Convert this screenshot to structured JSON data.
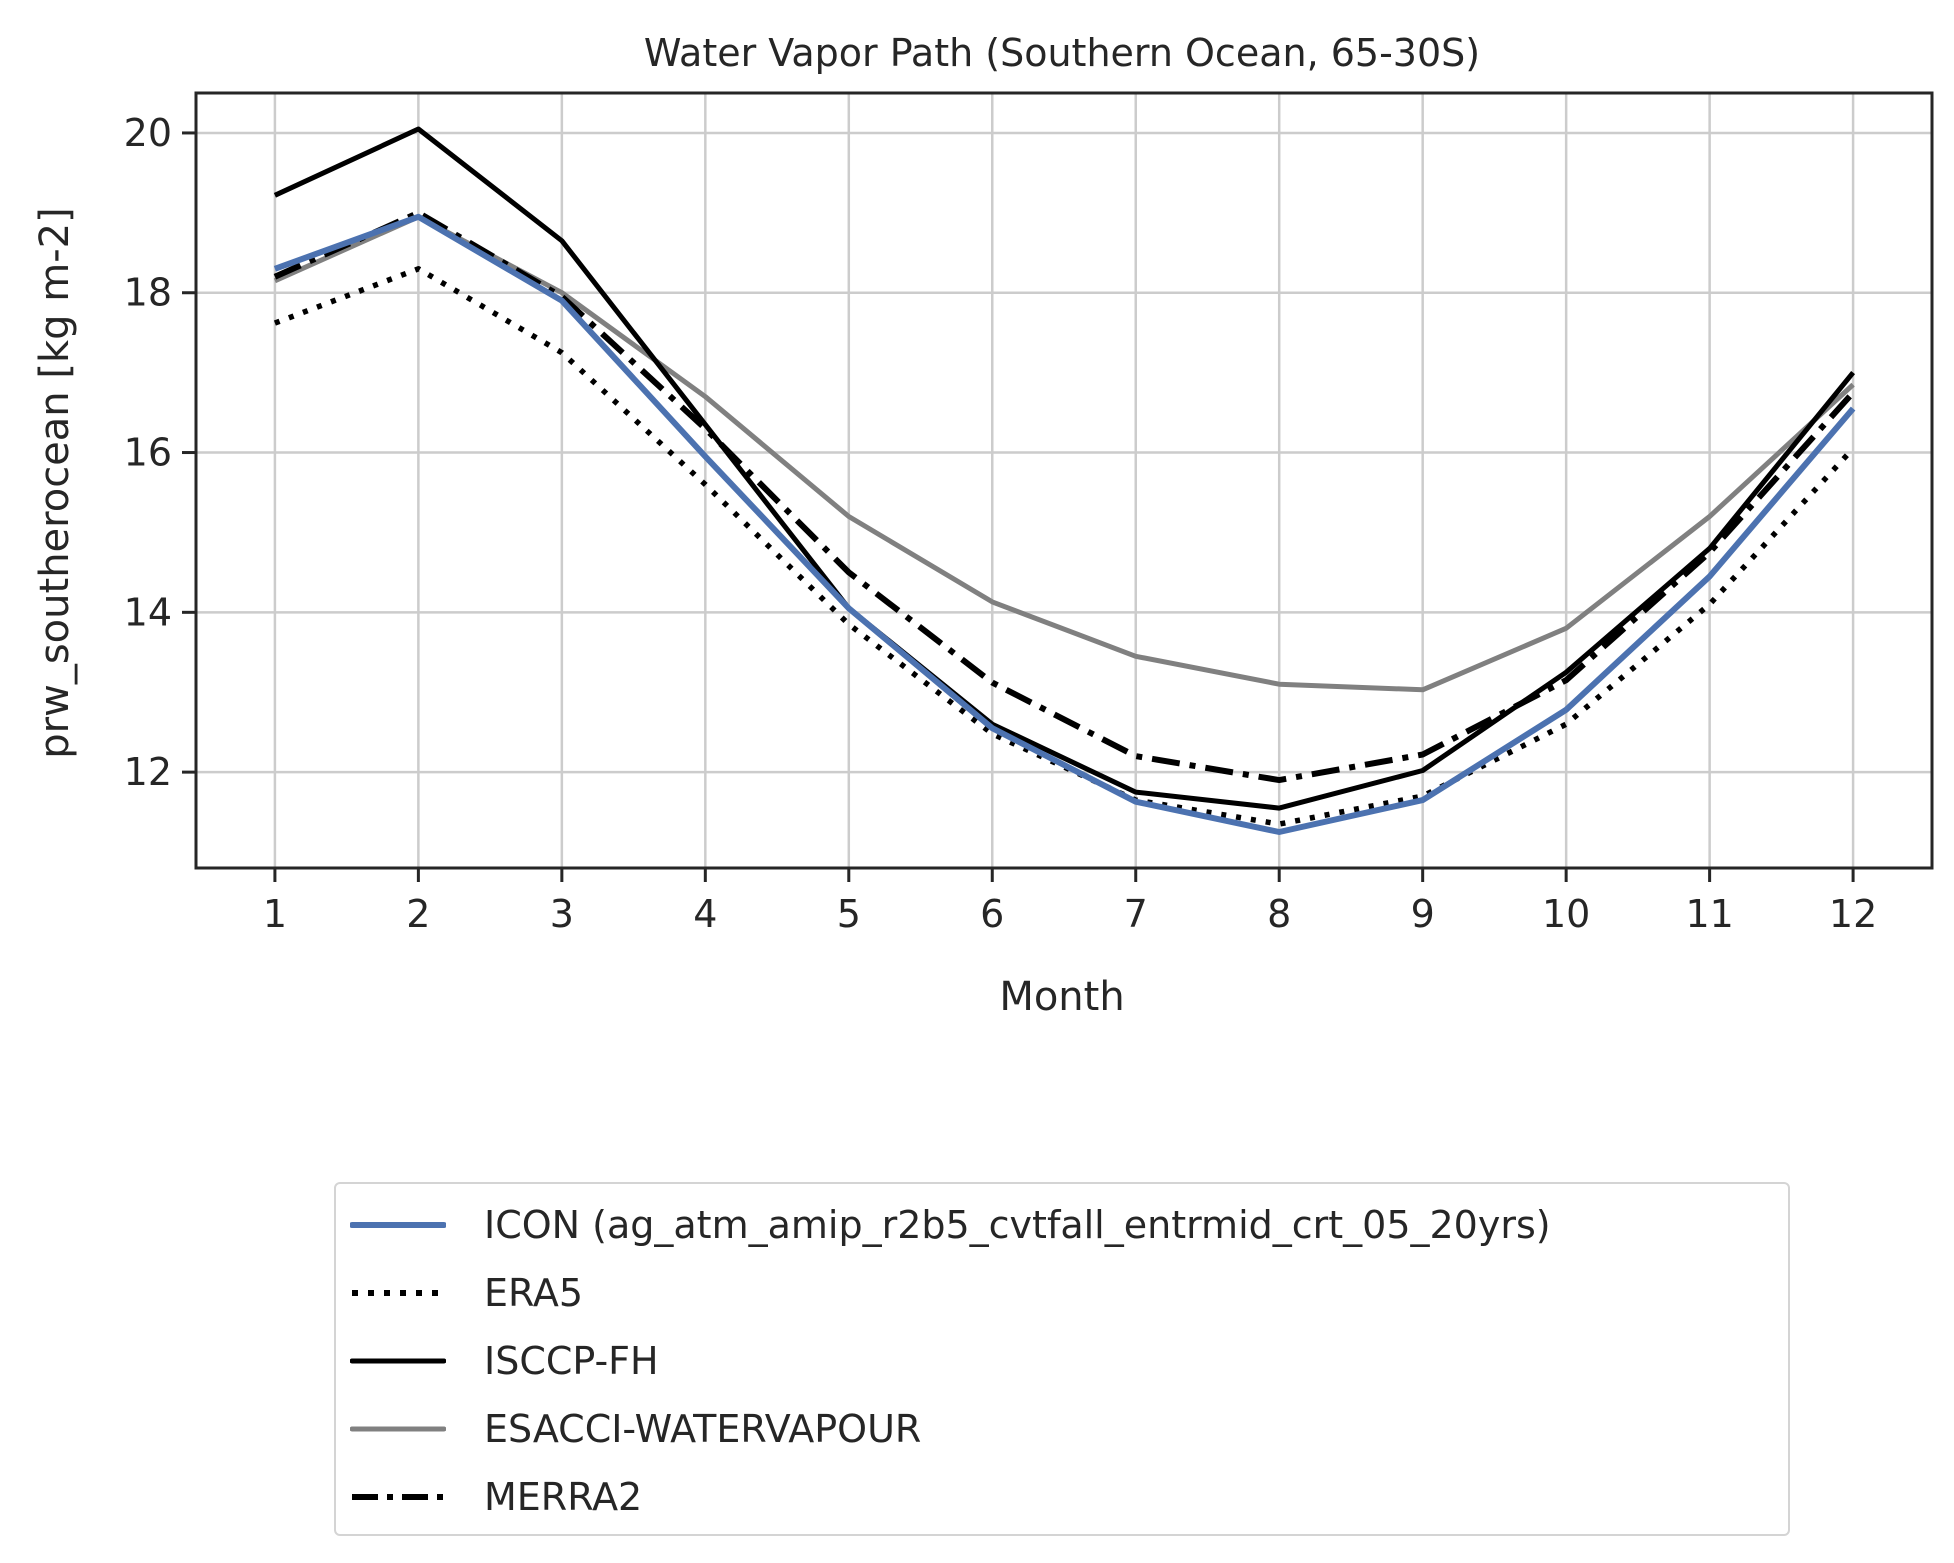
{
  "chart_data": {
    "type": "line",
    "title": "Water Vapor Path (Southern Ocean, 65-30S)",
    "xlabel": "Month",
    "ylabel": "prw_southerocean [kg m-2]",
    "x": [
      1,
      2,
      3,
      4,
      5,
      6,
      7,
      8,
      9,
      10,
      11,
      12
    ],
    "xlim": [
      0.45,
      12.55
    ],
    "ylim": [
      10.8,
      20.5
    ],
    "yticks": [
      12,
      14,
      16,
      18,
      20
    ],
    "grid": true,
    "legend_position": "below plot",
    "series": [
      {
        "name": "ICON (ag_atm_amip_r2b5_cvtfall_entrmid_crt_05_20yrs)",
        "color": "#4c72b0",
        "style": "solid",
        "values": [
          18.3,
          18.95,
          17.9,
          15.95,
          14.05,
          12.55,
          11.63,
          11.25,
          11.65,
          12.78,
          14.45,
          16.55
        ]
      },
      {
        "name": "ERA5",
        "color": "#000000",
        "style": "dotted",
        "values": [
          17.62,
          18.3,
          17.25,
          15.6,
          13.85,
          12.48,
          11.65,
          11.35,
          11.7,
          12.6,
          14.1,
          16.05
        ]
      },
      {
        "name": "ISCCP-FH",
        "color": "#000000",
        "style": "solid",
        "values": [
          19.22,
          20.05,
          18.65,
          16.35,
          14.05,
          12.6,
          11.75,
          11.55,
          12.02,
          13.25,
          14.8,
          17.0
        ]
      },
      {
        "name": "ESACCI-WATERVAPOUR",
        "color": "#808080",
        "style": "solid",
        "values": [
          18.15,
          18.95,
          18.0,
          16.7,
          15.2,
          14.13,
          13.45,
          13.1,
          13.03,
          13.8,
          15.2,
          16.85
        ]
      },
      {
        "name": "MERRA2",
        "color": "#000000",
        "style": "dashdot",
        "values": [
          18.2,
          19.0,
          17.95,
          16.3,
          14.5,
          13.12,
          12.2,
          11.9,
          12.22,
          13.15,
          14.75,
          16.75
        ]
      }
    ]
  }
}
